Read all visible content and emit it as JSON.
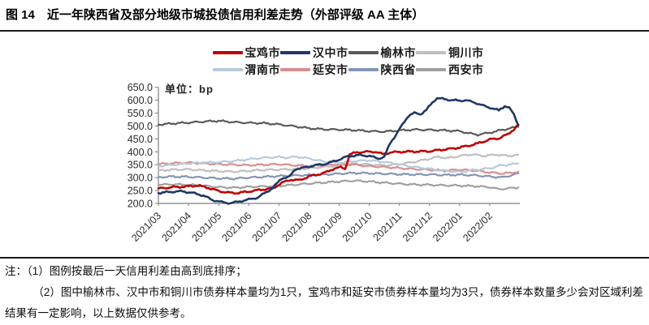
{
  "figure": {
    "label": "图 14",
    "title": "近一年陕西省及部分地级市城投债信用利差走势（外部评级 AA 主体）"
  },
  "notes": {
    "line1": "注：（1）图例按最后一天信用利差由高到底排序；",
    "line2": "（2）图中榆林市、汉中市和铜川市债券样本量均为1只，宝鸡市和延安市债券样本量均为3只，债券样本数量多少会对区域利差结果有一定影响，以上数据仅供参考。"
  },
  "chart_data": {
    "type": "line",
    "unit_label": "单位：bp",
    "x_axis": "month (2021/03 - 2022/02), point t = months since 2021-03-01",
    "x_tick_labels": [
      "2021/03",
      "2021/04",
      "2021/05",
      "2021/06",
      "2021/07",
      "2021/08",
      "2021/09",
      "2021/10",
      "2021/11",
      "2021/12",
      "2022/01",
      "2022/02"
    ],
    "ylim": [
      200,
      650
    ],
    "y_tick_labels": [
      "650.0",
      "600.0",
      "550.0",
      "500.0",
      "450.0",
      "400.0",
      "350.0",
      "300.0",
      "250.0",
      "200.0"
    ],
    "grid": "off",
    "legend_position": "top",
    "legend_rows": [
      [
        "宝鸡市",
        "汉中市",
        "榆林市",
        "铜川市"
      ],
      [
        "渭南市",
        "延安市",
        "陕西省",
        "西安市"
      ]
    ],
    "series": [
      {
        "name": "宝鸡市",
        "color": "#C00000",
        "stroke_width": 2.6,
        "z": 7,
        "points": [
          [
            0,
            258
          ],
          [
            0.5,
            263
          ],
          [
            1,
            266
          ],
          [
            1.3,
            270
          ],
          [
            1.6,
            262
          ],
          [
            2,
            248
          ],
          [
            2.3,
            242
          ],
          [
            2.6,
            240
          ],
          [
            3,
            246
          ],
          [
            3.4,
            253
          ],
          [
            3.8,
            258
          ],
          [
            4.1,
            280
          ],
          [
            4.4,
            292
          ],
          [
            4.7,
            290
          ],
          [
            5,
            305
          ],
          [
            5.3,
            312
          ],
          [
            5.6,
            322
          ],
          [
            5.85,
            336
          ],
          [
            6.05,
            340
          ],
          [
            6.2,
            334
          ],
          [
            6.35,
            390
          ],
          [
            6.6,
            398
          ],
          [
            6.9,
            400
          ],
          [
            7.2,
            400
          ],
          [
            7.45,
            391
          ],
          [
            7.7,
            397
          ],
          [
            8,
            400
          ],
          [
            8.5,
            401
          ],
          [
            9,
            402
          ],
          [
            9.4,
            408
          ],
          [
            9.8,
            413
          ],
          [
            10.2,
            421
          ],
          [
            10.6,
            432
          ],
          [
            11,
            448
          ],
          [
            11.3,
            452
          ],
          [
            11.6,
            468
          ],
          [
            11.8,
            487
          ],
          [
            11.95,
            505
          ]
        ]
      },
      {
        "name": "汉中市",
        "color": "#1F3864",
        "stroke_width": 2.6,
        "z": 8,
        "points": [
          [
            0,
            240
          ],
          [
            0.4,
            245
          ],
          [
            0.8,
            247
          ],
          [
            1.2,
            239
          ],
          [
            1.5,
            230
          ],
          [
            1.8,
            213
          ],
          [
            2.1,
            205
          ],
          [
            2.4,
            201
          ],
          [
            2.7,
            208
          ],
          [
            3,
            215
          ],
          [
            3.3,
            223
          ],
          [
            3.6,
            245
          ],
          [
            3.8,
            260
          ],
          [
            4.1,
            298
          ],
          [
            4.35,
            303
          ],
          [
            4.55,
            333
          ],
          [
            4.9,
            340
          ],
          [
            5.2,
            348
          ],
          [
            5.5,
            352
          ],
          [
            5.75,
            360
          ],
          [
            6,
            370
          ],
          [
            6.3,
            383
          ],
          [
            6.7,
            387
          ],
          [
            7,
            384
          ],
          [
            7.3,
            374
          ],
          [
            7.5,
            380
          ],
          [
            7.7,
            435
          ],
          [
            7.9,
            468
          ],
          [
            8.1,
            505
          ],
          [
            8.3,
            540
          ],
          [
            8.5,
            550
          ],
          [
            8.7,
            546
          ],
          [
            8.9,
            562
          ],
          [
            9.1,
            592
          ],
          [
            9.25,
            608
          ],
          [
            9.5,
            604
          ],
          [
            9.75,
            600
          ],
          [
            10,
            598
          ],
          [
            10.2,
            600
          ],
          [
            10.5,
            591
          ],
          [
            10.8,
            578
          ],
          [
            11.1,
            568
          ],
          [
            11.3,
            560
          ],
          [
            11.5,
            578
          ],
          [
            11.65,
            570
          ],
          [
            11.8,
            545
          ],
          [
            11.95,
            503
          ]
        ]
      },
      {
        "name": "榆林市",
        "color": "#595959",
        "stroke_width": 2.2,
        "z": 1,
        "points": [
          [
            0,
            505
          ],
          [
            0.5,
            510
          ],
          [
            1,
            513
          ],
          [
            1.5,
            517
          ],
          [
            2,
            520
          ],
          [
            2.5,
            515
          ],
          [
            3,
            512
          ],
          [
            3.5,
            511
          ],
          [
            4,
            506
          ],
          [
            4.5,
            499
          ],
          [
            5,
            491
          ],
          [
            5.5,
            487
          ],
          [
            6,
            486
          ],
          [
            6.5,
            484
          ],
          [
            7,
            480
          ],
          [
            7.5,
            478
          ],
          [
            8,
            483
          ],
          [
            8.5,
            486
          ],
          [
            9,
            485
          ],
          [
            9.5,
            483
          ],
          [
            10,
            480
          ],
          [
            10.3,
            472
          ],
          [
            10.6,
            466
          ],
          [
            11,
            474
          ],
          [
            11.5,
            487
          ],
          [
            11.95,
            497
          ]
        ]
      },
      {
        "name": "铜川市",
        "color": "#BFBFBF",
        "stroke_width": 2.2,
        "z": 2,
        "points": [
          [
            0,
            328
          ],
          [
            0.5,
            331
          ],
          [
            1,
            332
          ],
          [
            1.5,
            328
          ],
          [
            2,
            325
          ],
          [
            2.5,
            323
          ],
          [
            3,
            326
          ],
          [
            3.5,
            330
          ],
          [
            4,
            331
          ],
          [
            4.5,
            333
          ],
          [
            5,
            336
          ],
          [
            5.5,
            341
          ],
          [
            6,
            348
          ],
          [
            6.5,
            354
          ],
          [
            7,
            351
          ],
          [
            7.5,
            347
          ],
          [
            8,
            352
          ],
          [
            8.5,
            361
          ],
          [
            9,
            373
          ],
          [
            9.3,
            381
          ],
          [
            9.6,
            375
          ],
          [
            10,
            384
          ],
          [
            10.4,
            390
          ],
          [
            10.8,
            384
          ],
          [
            11.2,
            389
          ],
          [
            11.6,
            384
          ],
          [
            11.95,
            388
          ]
        ]
      },
      {
        "name": "渭南市",
        "color": "#B7C9DC",
        "stroke_width": 2.2,
        "z": 6,
        "points": [
          [
            0,
            344
          ],
          [
            0.5,
            350
          ],
          [
            1,
            355
          ],
          [
            1.5,
            358
          ],
          [
            2,
            360
          ],
          [
            2.5,
            364
          ],
          [
            3,
            371
          ],
          [
            3.5,
            377
          ],
          [
            4,
            380
          ],
          [
            4.3,
            377
          ],
          [
            4.6,
            381
          ],
          [
            5,
            374
          ],
          [
            5.5,
            362
          ],
          [
            6,
            357
          ],
          [
            6.5,
            364
          ],
          [
            7,
            367
          ],
          [
            7.5,
            361
          ],
          [
            8,
            351
          ],
          [
            8.5,
            341
          ],
          [
            9,
            334
          ],
          [
            9.5,
            327
          ],
          [
            10,
            322
          ],
          [
            10.5,
            330
          ],
          [
            11,
            336
          ],
          [
            11.4,
            348
          ],
          [
            11.7,
            351
          ],
          [
            11.95,
            355
          ]
        ]
      },
      {
        "name": "延安市",
        "color": "#D98F8F",
        "stroke_width": 2.2,
        "z": 5,
        "points": [
          [
            0,
            352
          ],
          [
            0.5,
            356
          ],
          [
            1,
            358
          ],
          [
            1.5,
            355
          ],
          [
            2,
            352
          ],
          [
            2.5,
            350
          ],
          [
            3,
            348
          ],
          [
            3.5,
            350
          ],
          [
            4,
            352
          ],
          [
            4.5,
            348
          ],
          [
            5,
            345
          ],
          [
            5.5,
            348
          ],
          [
            6,
            352
          ],
          [
            6.5,
            350
          ],
          [
            7,
            344
          ],
          [
            7.5,
            341
          ],
          [
            8,
            337
          ],
          [
            8.5,
            333
          ],
          [
            9,
            330
          ],
          [
            9.5,
            327
          ],
          [
            10,
            331
          ],
          [
            10.5,
            327
          ],
          [
            11,
            320
          ],
          [
            11.4,
            316
          ],
          [
            11.7,
            318
          ],
          [
            11.95,
            323
          ]
        ]
      },
      {
        "name": "陕西省",
        "color": "#8494B4",
        "stroke_width": 2.2,
        "z": 4,
        "points": [
          [
            0,
            302
          ],
          [
            0.5,
            304
          ],
          [
            1,
            303
          ],
          [
            1.5,
            300
          ],
          [
            2,
            297
          ],
          [
            2.5,
            296
          ],
          [
            3,
            300
          ],
          [
            3.5,
            303
          ],
          [
            4,
            306
          ],
          [
            4.5,
            308
          ],
          [
            5,
            310
          ],
          [
            5.5,
            312
          ],
          [
            6,
            315
          ],
          [
            6.5,
            318
          ],
          [
            7,
            317
          ],
          [
            7.5,
            315
          ],
          [
            8,
            313
          ],
          [
            8.5,
            312
          ],
          [
            9,
            312
          ],
          [
            9.5,
            310
          ],
          [
            10,
            311
          ],
          [
            10.5,
            309
          ],
          [
            11,
            304
          ],
          [
            11.4,
            301
          ],
          [
            11.7,
            308
          ],
          [
            11.95,
            316
          ]
        ]
      },
      {
        "name": "西安市",
        "color": "#A0A0A0",
        "stroke_width": 2.2,
        "z": 3,
        "points": [
          [
            0,
            272
          ],
          [
            0.5,
            274
          ],
          [
            1,
            272
          ],
          [
            1.5,
            268
          ],
          [
            2,
            263
          ],
          [
            2.5,
            261
          ],
          [
            3,
            264
          ],
          [
            3.5,
            266
          ],
          [
            4,
            268
          ],
          [
            4.5,
            272
          ],
          [
            5,
            277
          ],
          [
            5.5,
            281
          ],
          [
            6,
            285
          ],
          [
            6.5,
            288
          ],
          [
            7,
            285
          ],
          [
            7.5,
            280
          ],
          [
            8,
            276
          ],
          [
            8.5,
            273
          ],
          [
            9,
            272
          ],
          [
            9.5,
            270
          ],
          [
            10,
            269
          ],
          [
            10.5,
            267
          ],
          [
            11,
            263
          ],
          [
            11.3,
            255
          ],
          [
            11.6,
            258
          ],
          [
            11.95,
            262
          ]
        ]
      }
    ]
  }
}
